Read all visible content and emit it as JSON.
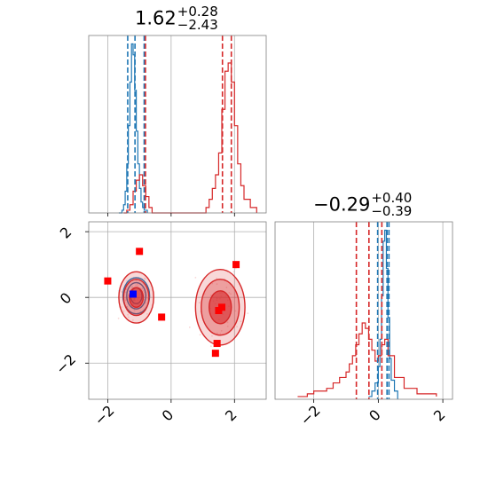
{
  "colors": {
    "blue": "#1f77b4",
    "red": "#d62728",
    "marker_red": "#ff0000",
    "marker_blue": "#0000ff",
    "grid": "#b0b0b0",
    "axes": "#000000"
  },
  "panel_titles": [
    {
      "main": "1.62",
      "sup": "+0.28",
      "sub": "−2.43"
    },
    {
      "main": "−0.29",
      "sup": "+0.40",
      "sub": "−0.39"
    }
  ],
  "chart_data": [
    {
      "type": "line",
      "panel": "top-left histogram (parameter 1)",
      "xlim": [
        -2.6,
        3.0
      ],
      "grid": true,
      "series": [
        {
          "color": "blue",
          "x": [
            -1.65,
            -1.55,
            -1.5,
            -1.45,
            -1.4,
            -1.35,
            -1.3,
            -1.25,
            -1.2,
            -1.15,
            -1.1,
            -1.05,
            -1.0,
            -0.95,
            -0.9,
            -0.85,
            -0.75
          ],
          "counts": [
            0,
            1,
            3,
            8,
            18,
            32,
            48,
            62,
            58,
            45,
            30,
            18,
            9,
            4,
            2,
            1,
            0
          ]
        },
        {
          "color": "red",
          "x": [
            -1.5,
            -1.4,
            -1.3,
            -1.2,
            -1.1,
            -1.0,
            -0.9,
            -0.8,
            -0.7,
            -0.6,
            1.0,
            1.1,
            1.2,
            1.3,
            1.4,
            1.5,
            1.6,
            1.7,
            1.8,
            1.9,
            2.0,
            2.1,
            2.2,
            2.3,
            2.5,
            2.7
          ],
          "counts": [
            0,
            1,
            3,
            8,
            12,
            14,
            10,
            6,
            2,
            0,
            0,
            2,
            5,
            9,
            14,
            22,
            38,
            52,
            55,
            48,
            32,
            18,
            10,
            5,
            2,
            0
          ]
        }
      ],
      "quantile_lines": [
        {
          "color": "blue",
          "x": [
            -1.37,
            -1.14,
            -0.85
          ]
        },
        {
          "color": "red",
          "x": [
            -0.81,
            1.62,
            1.9
          ]
        }
      ]
    },
    {
      "type": "scatter",
      "panel": "bottom-left 2D density (parameter 1 vs parameter 2)",
      "xlim": [
        -2.6,
        3.0
      ],
      "ylim": [
        -3.1,
        2.3
      ],
      "xticks": [
        "−2",
        "0",
        "2"
      ],
      "yticks": [
        "−2",
        "0",
        "2"
      ],
      "grid": true,
      "contours": [
        {
          "color": "blue",
          "cx": -1.1,
          "cy": 0.05,
          "rx": [
            0.42,
            0.3,
            0.18
          ],
          "ry": [
            0.55,
            0.4,
            0.24
          ]
        },
        {
          "color": "red",
          "cx": -1.1,
          "cy": 0.0,
          "rx": [
            0.55,
            0.4,
            0.22
          ],
          "ry": [
            0.78,
            0.55,
            0.3
          ]
        },
        {
          "color": "red",
          "cx": 1.55,
          "cy": -0.3,
          "rx": [
            0.78,
            0.6,
            0.35
          ],
          "ry": [
            1.15,
            0.85,
            0.5
          ]
        }
      ],
      "red_markers": [
        {
          "x": -2.0,
          "y": 0.5
        },
        {
          "x": -1.0,
          "y": 1.4
        },
        {
          "x": -0.3,
          "y": -0.6
        },
        {
          "x": 2.05,
          "y": 1.0
        },
        {
          "x": 1.6,
          "y": -0.3
        },
        {
          "x": 1.5,
          "y": -0.4
        },
        {
          "x": 1.45,
          "y": -1.4
        },
        {
          "x": 1.4,
          "y": -1.7
        }
      ],
      "blue_markers": [
        {
          "x": -1.2,
          "y": 0.1
        }
      ]
    },
    {
      "type": "line",
      "panel": "bottom-right histogram (parameter 2)",
      "xlim": [
        -3.2,
        2.3
      ],
      "xticks": [
        "−2",
        "0",
        "2"
      ],
      "grid": true,
      "series": [
        {
          "color": "blue",
          "x": [
            -0.3,
            -0.2,
            -0.1,
            0.0,
            0.05,
            0.1,
            0.15,
            0.2,
            0.25,
            0.3,
            0.35,
            0.4,
            0.5,
            0.6
          ],
          "counts": [
            1,
            3,
            6,
            12,
            22,
            38,
            58,
            62,
            48,
            30,
            15,
            7,
            3,
            0
          ]
        },
        {
          "color": "red",
          "x": [
            -2.5,
            -2.2,
            -2.0,
            -1.8,
            -1.6,
            -1.4,
            -1.2,
            -1.0,
            -0.9,
            -0.8,
            -0.7,
            -0.6,
            -0.5,
            -0.4,
            -0.3,
            -0.2,
            -0.1,
            0.0,
            0.1,
            0.2,
            0.3,
            0.5,
            0.8,
            1.2,
            1.8
          ],
          "counts": [
            1,
            2,
            3,
            3,
            4,
            6,
            8,
            10,
            13,
            16,
            20,
            24,
            28,
            26,
            22,
            18,
            14,
            16,
            20,
            22,
            16,
            8,
            4,
            2,
            1
          ]
        }
      ],
      "quantile_lines": [
        {
          "color": "blue",
          "x": [
            -0.02,
            0.27,
            0.33
          ]
        },
        {
          "color": "red",
          "x": [
            -0.68,
            -0.29,
            0.11
          ]
        }
      ]
    }
  ]
}
